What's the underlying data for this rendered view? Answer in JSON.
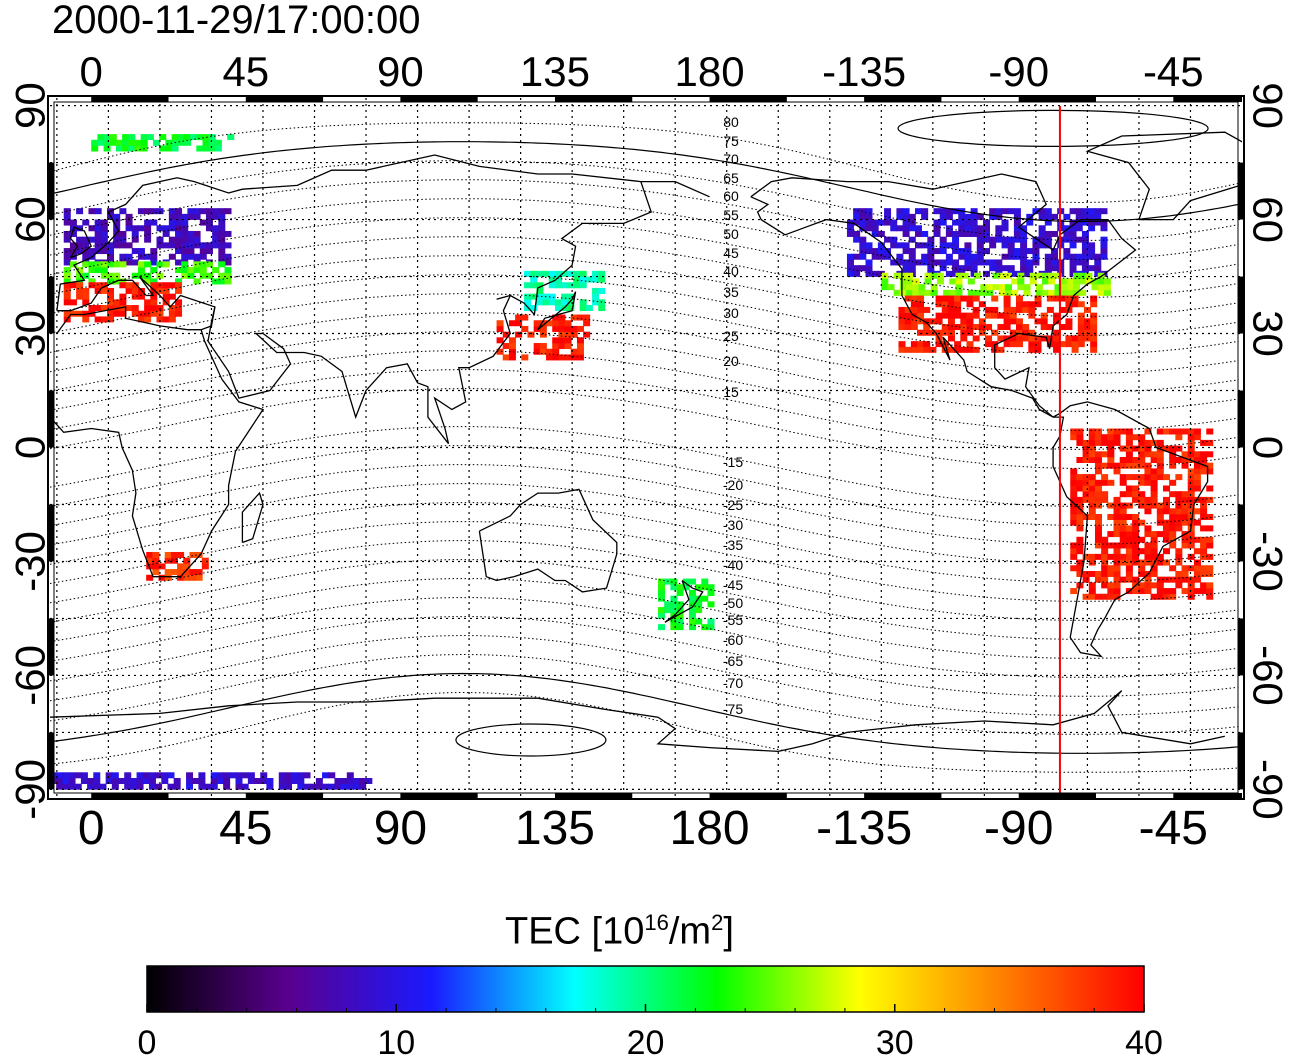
{
  "title": "2000-11-29/17:00:00",
  "map": {
    "lon_ticks_top": [
      "0",
      "45",
      "90",
      "135",
      "180",
      "-135",
      "-90",
      "-45"
    ],
    "lon_ticks_bottom": [
      "0",
      "45",
      "90",
      "135",
      "180",
      "-135",
      "-90",
      "-45"
    ],
    "lat_ticks_left": [
      "90",
      "60",
      "30",
      "0",
      "-30",
      "-60",
      "-90"
    ],
    "lat_ticks_right": [
      "90",
      "60",
      "30",
      "0",
      "-30",
      "-60",
      "-90"
    ],
    "lon_tick_values": [
      0,
      45,
      90,
      135,
      180,
      225,
      270,
      315
    ],
    "lat_tick_values": [
      90,
      60,
      30,
      0,
      -30,
      -60,
      -90
    ],
    "lon_range": [
      -12,
      335
    ],
    "lat_range": [
      -92,
      92
    ],
    "grid": true,
    "terminator_color": "#ff0000",
    "terminator_lon": -78,
    "north_contour_labels": [
      "80",
      "75",
      "70",
      "65",
      "60",
      "55",
      "50",
      "45",
      "40",
      "35",
      "30",
      "25",
      "20",
      "15"
    ],
    "south_contour_labels": [
      "-15",
      "-20",
      "-25",
      "-30",
      "-35",
      "-40",
      "-45",
      "-50",
      "-55",
      "-60",
      "-65",
      "-70",
      "-75"
    ]
  },
  "colorbar": {
    "title_main": "TEC  [10",
    "title_exp": "16",
    "title_unit": "/m",
    "title_unit_exp": "2",
    "title_close": "]",
    "tick_labels": [
      "0",
      "10",
      "20",
      "30",
      "40"
    ],
    "min": 0,
    "max": 40,
    "colors": [
      "#000000",
      "#5a0090",
      "#1a1aff",
      "#00ffff",
      "#00ff00",
      "#ffff00",
      "#ff8000",
      "#ff0000"
    ]
  },
  "tec_regions": [
    {
      "name": "europe-north",
      "lat": [
        48,
        62
      ],
      "lon": [
        -8,
        40
      ],
      "value": 8
    },
    {
      "name": "europe-mid",
      "lat": [
        43,
        48
      ],
      "lon": [
        -8,
        40
      ],
      "value": 24
    },
    {
      "name": "europe-south",
      "lat": [
        33,
        43
      ],
      "lon": [
        -8,
        25
      ],
      "value": 39
    },
    {
      "name": "south-africa",
      "lat": [
        -35,
        -28
      ],
      "lon": [
        16,
        33
      ],
      "value": 38
    },
    {
      "name": "japan-north",
      "lat": [
        36,
        46
      ],
      "lon": [
        126,
        148
      ],
      "value": 19
    },
    {
      "name": "japan-south",
      "lat": [
        23,
        35
      ],
      "lon": [
        118,
        145
      ],
      "value": 39
    },
    {
      "name": "north-america-north",
      "lat": [
        45,
        63
      ],
      "lon": [
        -140,
        -65
      ],
      "value": 9
    },
    {
      "name": "north-america-mid",
      "lat": [
        40,
        45
      ],
      "lon": [
        -130,
        -65
      ],
      "value": 26
    },
    {
      "name": "north-america-south",
      "lat": [
        25,
        40
      ],
      "lon": [
        -125,
        -68
      ],
      "value": 39
    },
    {
      "name": "south-america",
      "lat": [
        -40,
        5
      ],
      "lon": [
        -75,
        -35
      ],
      "value": 39
    },
    {
      "name": "new-zealand",
      "lat": [
        -48,
        -35
      ],
      "lon": [
        165,
        180
      ],
      "value": 22
    },
    {
      "name": "antarctic-band",
      "lat": [
        -90,
        -86
      ],
      "lon": [
        -12,
        80
      ],
      "value": 9
    },
    {
      "name": "arctic-band",
      "lat": [
        78,
        82
      ],
      "lon": [
        0,
        40
      ],
      "value": 22
    }
  ]
}
